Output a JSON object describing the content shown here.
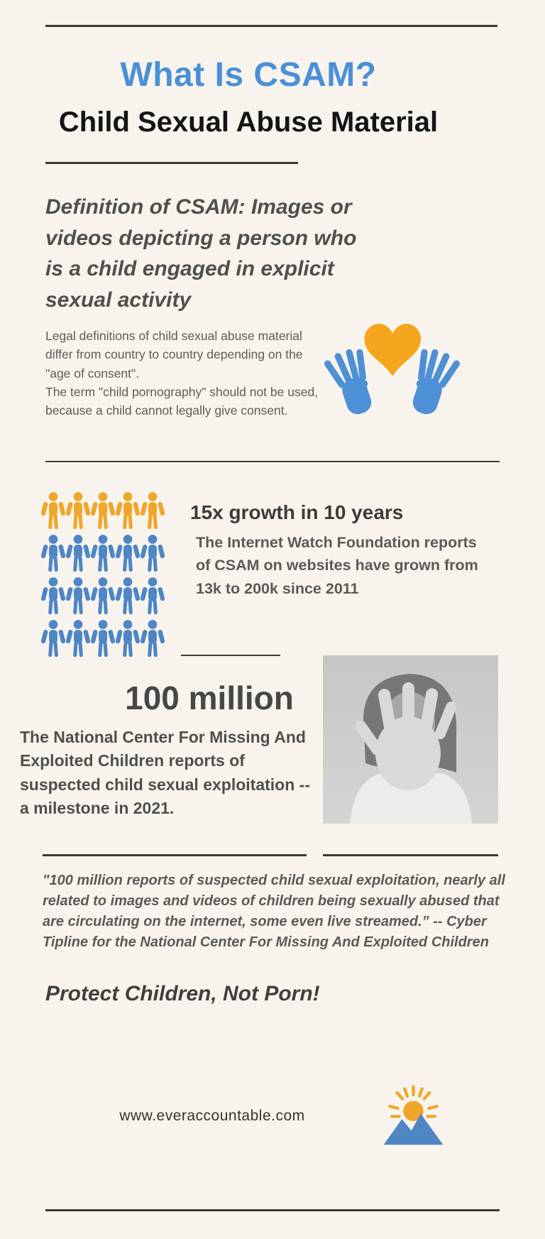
{
  "page": {
    "background": "#f8f4ed",
    "rule_color": "#3b3b3b"
  },
  "header": {
    "title": "What Is CSAM?",
    "title_color": "#4a90d8",
    "subtitle": "Child Sexual Abuse Material"
  },
  "definition": {
    "text": "Definition of CSAM: Images or videos depicting a person who is a child engaged in explicit sexual activity",
    "legal_note": "Legal definitions of child sexual abuse material differ from country to country depending on the \"age of consent\".\nThe term \"child pornography\" should not be used, because a child cannot legally give consent.",
    "icon": "hands-holding-heart-icon",
    "icon_colors": {
      "hands": "#4E90D6",
      "heart": "#F5A61D"
    }
  },
  "growth": {
    "heading": "15x growth in 10 years",
    "body": "The Internet Watch Foundation reports of CSAM on websites have grown from 13k to 200k since 2011",
    "pictogram": {
      "type": "pictogram",
      "rows": 4,
      "cols": 5,
      "orange_row_count": 1,
      "orange_people": 5,
      "blue_people": 15,
      "orange": "#F0A62A",
      "blue": "#4E86C6"
    }
  },
  "milestone": {
    "heading": "100 million",
    "body": "The National Center For Missing And Exploited Children reports of suspected child sexual exploitation -- a milestone in 2021.",
    "photo": "grayscale-hand-blocking-face-photo"
  },
  "quote": {
    "text": "\"100 million reports of suspected child sexual exploitation, nearly all related to images and videos of children being sexually abused that are circulating on the internet, some even live streamed.”  -- Cyber Tipline for the National Center For Missing And Exploited Children"
  },
  "cta": {
    "text": "Protect Children, Not Porn!"
  },
  "footer": {
    "website": "www.everaccountable.com",
    "logo": "sun-over-mountains-logo",
    "logo_colors": {
      "sun": "#F0A62A",
      "mountains": "#4E86C6"
    }
  }
}
